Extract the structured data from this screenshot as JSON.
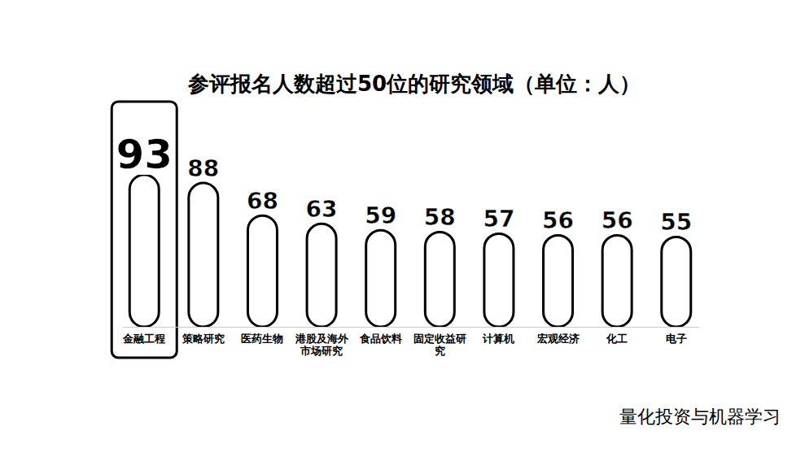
{
  "chart_data": {
    "type": "bar",
    "title": "参评报名人数超过50位的研究领域（单位：人）",
    "categories": [
      "金融工程",
      "策略研究",
      "医药生物",
      "港股及海外市场研究",
      "食品饮料",
      "固定收益研究",
      "计算机",
      "宏观经济",
      "化工",
      "电子"
    ],
    "values": [
      93,
      88,
      68,
      63,
      59,
      58,
      57,
      56,
      56,
      55
    ],
    "color": "#000000",
    "ylim": [
      0,
      93
    ],
    "data_labels": true,
    "tick_labels": "x",
    "annotations": [
      "量化投资与机器学习"
    ]
  }
}
